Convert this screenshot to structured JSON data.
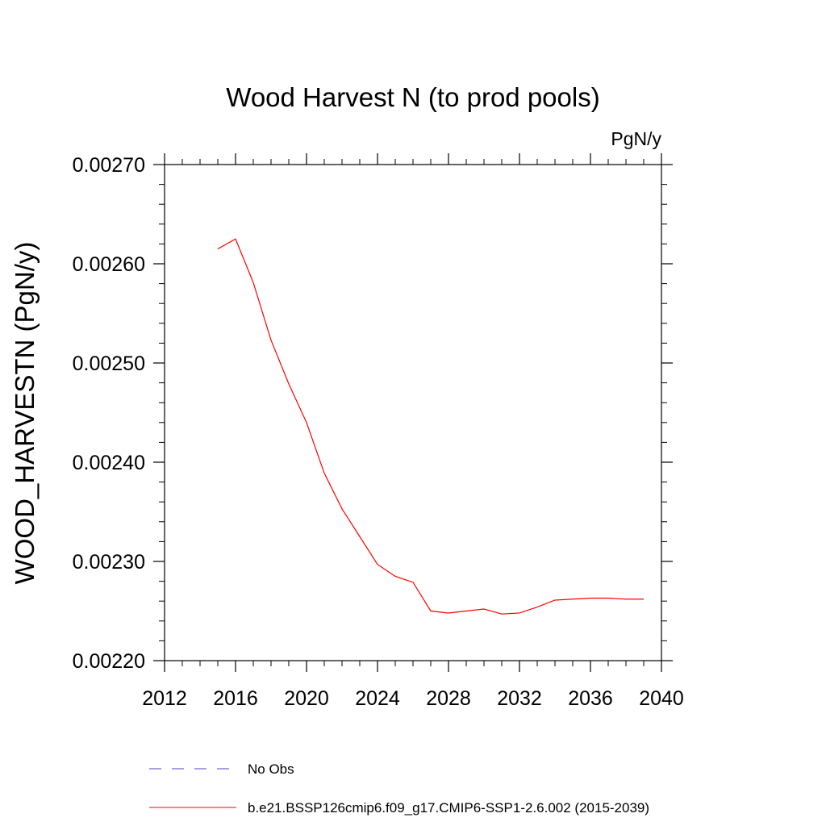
{
  "chart_data": {
    "type": "line",
    "title": "Wood Harvest N (to prod pools)",
    "units": "PgN/y",
    "xlabel": "",
    "ylabel": "WOOD_HARVESTN  (PgN/y)",
    "xlim": [
      2012,
      2040
    ],
    "ylim": [
      0.0022,
      0.0027
    ],
    "x_ticks": [
      2012,
      2016,
      2020,
      2024,
      2028,
      2032,
      2036,
      2040
    ],
    "x_tick_labels": [
      "2012",
      "2016",
      "2020",
      "2024",
      "2028",
      "2032",
      "2036",
      "2040"
    ],
    "y_ticks": [
      0.0022,
      0.0023,
      0.0024,
      0.0025,
      0.0026,
      0.0027
    ],
    "y_tick_labels": [
      "0.00220",
      "0.00230",
      "0.00240",
      "0.00250",
      "0.00260",
      "0.00270"
    ],
    "grid": false,
    "legend_position": "bottom",
    "series": [
      {
        "name": "No Obs",
        "color": "#4b44c8",
        "style": "dashed",
        "x": [],
        "values": []
      },
      {
        "name": "b.e21.BSSP126cmip6.f09_g17.CMIP6-SSP1-2.6.002 (2015-2039)",
        "color": "#ff0000",
        "style": "solid",
        "x": [
          2015,
          2016,
          2017,
          2018,
          2019,
          2020,
          2021,
          2022,
          2023,
          2024,
          2025,
          2026,
          2027,
          2028,
          2029,
          2030,
          2031,
          2032,
          2033,
          2034,
          2035,
          2036,
          2037,
          2038,
          2039
        ],
        "values": [
          0.002615,
          0.002625,
          0.002581,
          0.002523,
          0.002479,
          0.00244,
          0.002389,
          0.002353,
          0.002325,
          0.002297,
          0.002285,
          0.002279,
          0.00225,
          0.002248,
          0.00225,
          0.002252,
          0.002247,
          0.002248,
          0.002254,
          0.002261,
          0.002262,
          0.002263,
          0.002263,
          0.002262,
          0.002262
        ]
      }
    ]
  }
}
